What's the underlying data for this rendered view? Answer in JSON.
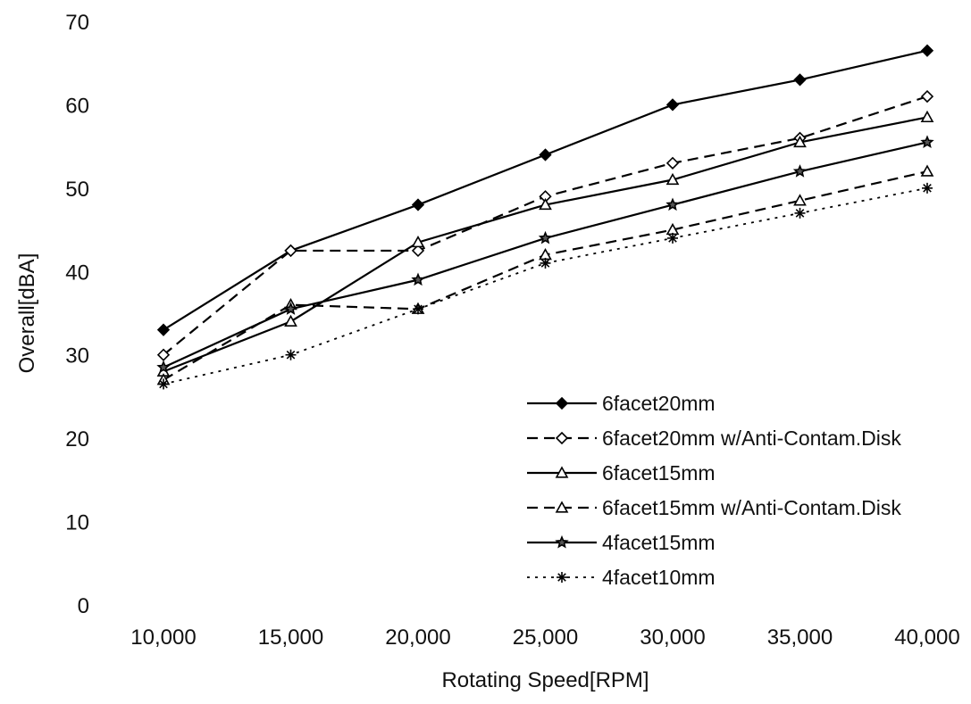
{
  "chart_data": {
    "type": "line",
    "title": "",
    "xlabel": "Rotating Speed[RPM]",
    "ylabel": "Overall[dBA]",
    "x": [
      10000,
      15000,
      20000,
      25000,
      30000,
      35000,
      40000
    ],
    "x_tick_labels": [
      "10,000",
      "15,000",
      "20,000",
      "25,000",
      "30,000",
      "35,000",
      "40,000"
    ],
    "y_ticks": [
      0,
      10,
      20,
      30,
      40,
      50,
      60,
      70
    ],
    "ylim": [
      0,
      70
    ],
    "grid": false,
    "legend_position": "bottom-right",
    "series": [
      {
        "name": "6facet20mm",
        "values": [
          33,
          42.5,
          48,
          54,
          60,
          63,
          66.5
        ],
        "marker": "diamond-filled",
        "dash": "solid",
        "color": "#000000"
      },
      {
        "name": "6facet20mm w/Anti-Contam.Disk",
        "values": [
          30,
          42.5,
          42.5,
          49,
          53,
          56,
          61
        ],
        "marker": "diamond-open",
        "dash": "dashed",
        "color": "#000000"
      },
      {
        "name": "6facet15mm",
        "values": [
          28,
          34,
          43.5,
          48,
          51,
          55.5,
          58.5
        ],
        "marker": "triangle-open",
        "dash": "solid",
        "color": "#000000"
      },
      {
        "name": "6facet15mm w/Anti-Contam.Disk",
        "values": [
          27,
          36,
          35.5,
          42,
          45,
          48.5,
          52
        ],
        "marker": "triangle-open",
        "dash": "dashed",
        "color": "#000000"
      },
      {
        "name": "4facet15mm",
        "values": [
          28.5,
          35.5,
          39,
          44,
          48,
          52,
          55.5
        ],
        "marker": "star",
        "dash": "solid",
        "color": "#000000"
      },
      {
        "name": "4facet10mm",
        "values": [
          26.5,
          30,
          35.5,
          41,
          44,
          47,
          50
        ],
        "marker": "asterisk",
        "dash": "dotted",
        "color": "#000000"
      }
    ]
  }
}
